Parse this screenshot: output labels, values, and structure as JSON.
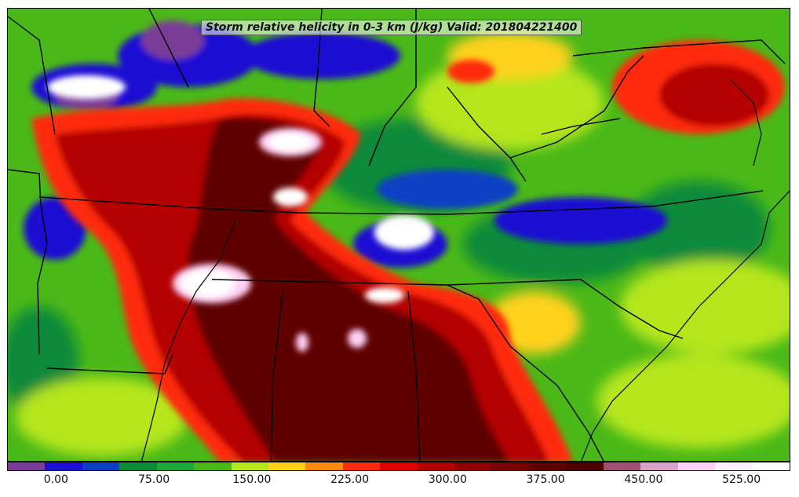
{
  "title": "Storm relative helicity in 0-3 km (J/kg) Valid: 201804221400",
  "colorbar": {
    "colors": [
      "#7a3d97",
      "#1a0fd2",
      "#0a3fc4",
      "#0a8a3a",
      "#1ea83a",
      "#4ab818",
      "#b5e61a",
      "#ffd21a",
      "#ff8a10",
      "#ff2a10",
      "#e00000",
      "#b40000",
      "#900000",
      "#780000",
      "#5e0000",
      "#4a0000",
      "#a05070",
      "#d7a3c8",
      "#ffd0f5",
      "#fff0ff",
      "#ffffff"
    ],
    "tick_labels": [
      "0.00",
      "75.00",
      "150.00",
      "225.00",
      "300.00",
      "375.00",
      "450.00",
      "525.00"
    ],
    "tick_values": [
      0,
      75,
      150,
      225,
      300,
      375,
      450,
      525
    ],
    "range": [
      -37.5,
      562.5
    ]
  },
  "field_colors": {
    "base": "#4ab818",
    "dark_green": "#0a8a3a",
    "yellow_green": "#b5e61a",
    "yellow": "#ffd21a",
    "orange": "#ff8a10",
    "red": "#ff2a10",
    "dark_red": "#b40000",
    "darkest_red": "#5e0000",
    "blue": "#1a0fd2",
    "purple": "#7a3d97",
    "pink": "#ffd0f5",
    "white": "#ffffff"
  }
}
